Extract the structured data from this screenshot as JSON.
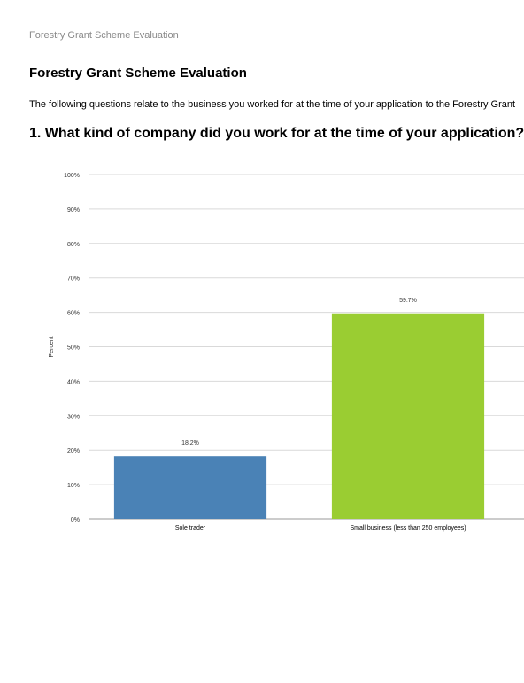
{
  "page": {
    "running_header": "Forestry Grant Scheme Evaluation",
    "title": "Forestry Grant Scheme Evaluation",
    "intro": "The following questions relate to the business you worked for at the time of your application to the Forestry Grant",
    "question": "1. What kind of company did you work for at the time of your application?"
  },
  "chart_data": {
    "type": "bar",
    "categories": [
      "Sole trader",
      "Small business (less than 250 employees)"
    ],
    "values": [
      18.2,
      59.7
    ],
    "value_labels": [
      "18.2%",
      "59.7%"
    ],
    "colors": [
      "#4a82b6",
      "#9acd32"
    ],
    "ylabel": "Percent",
    "ylim": [
      0,
      100
    ],
    "yticks": [
      "0%",
      "10%",
      "20%",
      "30%",
      "40%",
      "50%",
      "60%",
      "70%",
      "80%",
      "90%",
      "100%"
    ],
    "grid": true,
    "legend": "none"
  }
}
